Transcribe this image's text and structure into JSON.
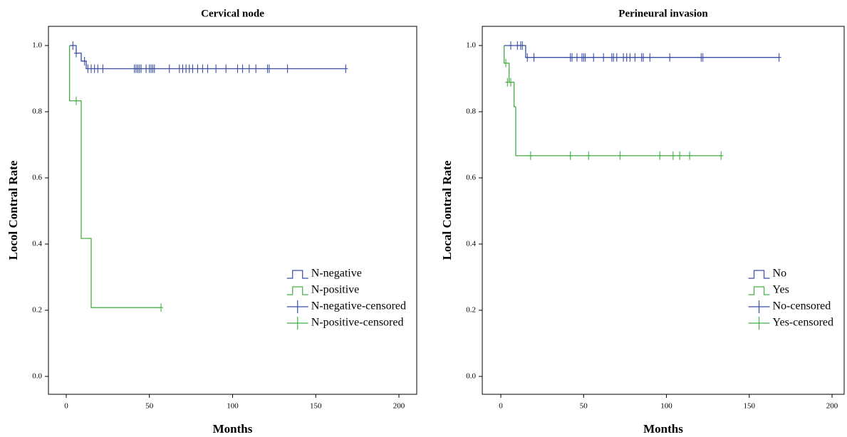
{
  "chart_data": [
    {
      "type": "kaplan-meier",
      "title": "Cervical node",
      "x_label": "Months",
      "y_label": "Locol Contral Rate",
      "xlim": [
        -10.7,
        210.7
      ],
      "ylim": [
        -0.054,
        1.058
      ],
      "xticks": [
        0,
        50,
        100,
        150,
        200
      ],
      "yticks": [
        {
          "value": 0,
          "label": "0.0"
        },
        0.2,
        0.4,
        0.6,
        0.8,
        {
          "value": 1,
          "label": "1.0"
        }
      ],
      "legend": "lower right",
      "series": [
        {
          "name": "N-negative",
          "style": "step",
          "color": "#3b4ea3",
          "x": [
            2,
            6,
            9,
            12,
            168
          ],
          "values": [
            1,
            0.977,
            0.953,
            0.93,
            0.93
          ]
        },
        {
          "name": "N-positive",
          "style": "step",
          "color": "#44b044",
          "x": [
            2,
            2,
            9,
            15,
            57
          ],
          "values": [
            1,
            0.833,
            0.417,
            0.208,
            0.208
          ]
        },
        {
          "name": "N-negative-censored",
          "style": "censored",
          "color": "#3b4ea3",
          "x": [
            4,
            6,
            11,
            13,
            15,
            17,
            19,
            22,
            41,
            42,
            43,
            44,
            45,
            48,
            50,
            51,
            52,
            53,
            62,
            68,
            70,
            72,
            74,
            76,
            79,
            82,
            85,
            90,
            96,
            103,
            106,
            110,
            114,
            121,
            122,
            133,
            168
          ],
          "values": [
            1,
            0.977,
            0.953,
            0.93,
            0.93,
            0.93,
            0.93,
            0.93,
            0.93,
            0.93,
            0.93,
            0.93,
            0.93,
            0.93,
            0.93,
            0.93,
            0.93,
            0.93,
            0.93,
            0.93,
            0.93,
            0.93,
            0.93,
            0.93,
            0.93,
            0.93,
            0.93,
            0.93,
            0.93,
            0.93,
            0.93,
            0.93,
            0.93,
            0.93,
            0.93,
            0.93,
            0.93
          ]
        },
        {
          "name": "N-positive-censored",
          "style": "censored",
          "color": "#44b044",
          "x": [
            6,
            57
          ],
          "values": [
            0.833,
            0.208
          ]
        }
      ]
    },
    {
      "type": "kaplan-meier",
      "title": "Perineural invasion",
      "x_label": "Months",
      "y_label": "Local Contral Rate",
      "xlim": [
        -11.2,
        207.3
      ],
      "ylim": [
        -0.054,
        1.058
      ],
      "xticks": [
        0,
        50,
        100,
        150,
        200
      ],
      "yticks": [
        {
          "value": 0,
          "label": "0.0"
        },
        0.2,
        0.4,
        0.6,
        0.8,
        {
          "value": 1,
          "label": "1.0"
        }
      ],
      "legend": "lower right",
      "series": [
        {
          "name": "No",
          "style": "step",
          "color": "#3b4ea3",
          "x": [
            2,
            15,
            168
          ],
          "values": [
            1,
            0.964,
            0.964
          ]
        },
        {
          "name": "Yes",
          "style": "step",
          "color": "#44b044",
          "x": [
            2,
            2,
            5,
            8,
            9,
            133
          ],
          "values": [
            1,
            0.947,
            0.889,
            0.815,
            0.667,
            0.667
          ]
        },
        {
          "name": "No-censored",
          "style": "censored",
          "color": "#3b4ea3",
          "x": [
            6,
            10,
            12,
            13,
            16,
            20,
            42,
            43,
            46,
            49,
            50,
            51,
            56,
            62,
            67,
            68,
            70,
            74,
            76,
            78,
            81,
            85,
            86,
            90,
            102,
            121,
            122,
            168
          ],
          "values": [
            1,
            1,
            1,
            1,
            0.964,
            0.964,
            0.964,
            0.964,
            0.964,
            0.964,
            0.964,
            0.964,
            0.964,
            0.964,
            0.964,
            0.964,
            0.964,
            0.964,
            0.964,
            0.964,
            0.964,
            0.964,
            0.964,
            0.964,
            0.964,
            0.964,
            0.964,
            0.964
          ]
        },
        {
          "name": "Yes-censored",
          "style": "censored",
          "color": "#44b044",
          "x": [
            3,
            4,
            6,
            18,
            42,
            53,
            72,
            96,
            104,
            108,
            114,
            133
          ],
          "values": [
            0.947,
            0.889,
            0.889,
            0.667,
            0.667,
            0.667,
            0.667,
            0.667,
            0.667,
            0.667,
            0.667,
            0.667
          ]
        }
      ]
    }
  ]
}
